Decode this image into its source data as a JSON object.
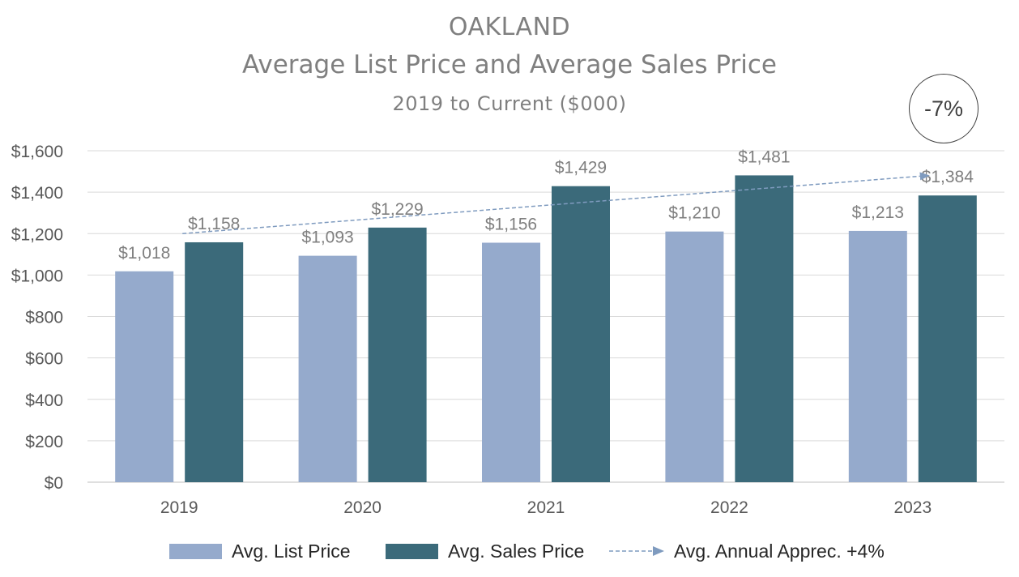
{
  "chart_data": {
    "type": "bar",
    "title": "OAKLAND",
    "subtitle": "Average List Price and Average Sales Price",
    "subtitle2": "2019 to Current ($000)",
    "badge": "-7%",
    "categories": [
      "2019",
      "2020",
      "2021",
      "2022",
      "2023"
    ],
    "series": [
      {
        "name": "Avg. List Price",
        "color": "#95aacc",
        "values": [
          1018,
          1093,
          1156,
          1210,
          1213
        ],
        "labels": [
          "$1,018",
          "$1,093",
          "$1,156",
          "$1,210",
          "$1,213"
        ]
      },
      {
        "name": "Avg. Sales Price",
        "color": "#3b6a7a",
        "values": [
          1158,
          1229,
          1429,
          1481,
          1384
        ],
        "labels": [
          "$1,158",
          "$1,229",
          "$1,429",
          "$1,481",
          "$1,384"
        ]
      }
    ],
    "trendline": {
      "name": "Avg. Annual Apprec. +4%",
      "color": "#7f9bbf",
      "from": 1200,
      "to": 1480
    },
    "ylim": [
      0,
      1600
    ],
    "yticks": [
      0,
      200,
      400,
      600,
      800,
      1000,
      1200,
      1400,
      1600
    ],
    "ytick_labels": [
      "$0",
      "$200",
      "$400",
      "$600",
      "$800",
      "$1,000",
      "$1,200",
      "$1,400",
      "$1,600"
    ],
    "xlabel": "",
    "ylabel": "",
    "grid": true,
    "legend": "bottom"
  }
}
